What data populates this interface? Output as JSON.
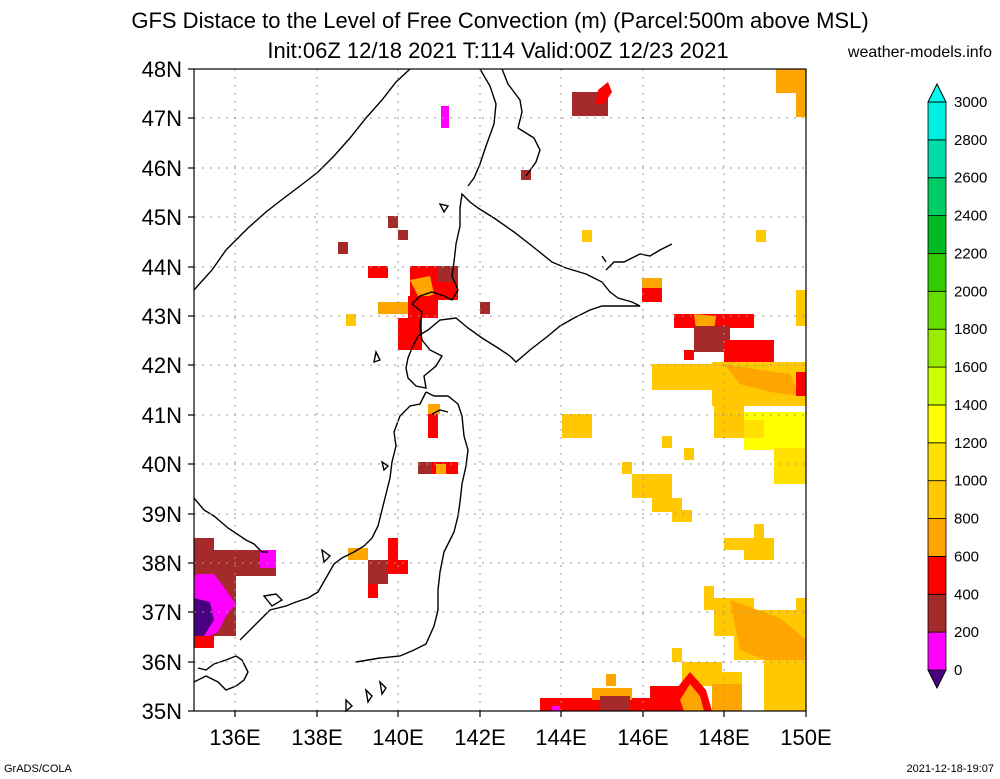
{
  "title": {
    "line1": "GFS Distace to the Level of Free Convection (m) (Parcel:500m above MSL)",
    "line2": "Init:06Z 12/18 2021 T:114 Valid:00Z 12/23 2021"
  },
  "site": "weather-models.info",
  "footer": {
    "left": "GrADS/COLA",
    "right": "2021-12-18-19:07"
  },
  "lat_labels": [
    "48N",
    "47N",
    "46N",
    "45N",
    "44N",
    "43N",
    "42N",
    "41N",
    "40N",
    "39N",
    "38N",
    "37N",
    "36N",
    "35N"
  ],
  "lon_labels": [
    "136E",
    "138E",
    "140E",
    "142E",
    "144E",
    "146E",
    "148E",
    "150E"
  ],
  "colorbar": {
    "levels": [
      "0",
      "200",
      "400",
      "600",
      "800",
      "1000",
      "1200",
      "1400",
      "1600",
      "1800",
      "2000",
      "2200",
      "2400",
      "2600",
      "2800",
      "3000"
    ],
    "colors": [
      "#4b0082",
      "#ff00ff",
      "#a52a2a",
      "#ff0000",
      "#ffa500",
      "#ffc800",
      "#ffe000",
      "#ffff00",
      "#ccff00",
      "#99ee00",
      "#66dd00",
      "#33cc00",
      "#00bb22",
      "#00cc66",
      "#00ddaa",
      "#00eedd",
      "#00ffee"
    ]
  }
}
